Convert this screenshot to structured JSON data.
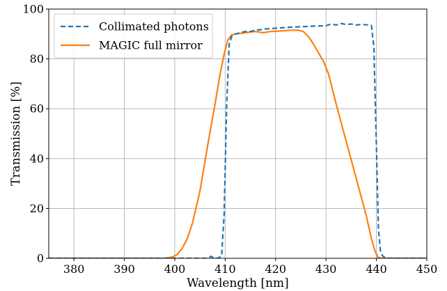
{
  "chart_data": {
    "type": "line",
    "xlabel": "Wavelength [nm]",
    "ylabel": "Transmission [%]",
    "xlim": [
      375,
      450
    ],
    "ylim": [
      0,
      100
    ],
    "xticks": [
      380,
      390,
      400,
      410,
      420,
      430,
      440,
      450
    ],
    "yticks": [
      0,
      20,
      40,
      60,
      80,
      100
    ],
    "grid": true,
    "legend_position": "top-left",
    "series": [
      {
        "name": "Collimated photons",
        "color": "#1f77b4",
        "style": "dashed",
        "x": [
          375,
          406.5,
          407.2,
          407.8,
          408.5,
          409.3,
          409.8,
          410.3,
          410.8,
          411.3,
          412,
          413,
          414,
          415,
          416,
          418,
          420,
          422,
          424,
          426,
          428,
          430,
          431,
          432,
          433,
          434,
          435,
          436,
          437,
          438,
          439,
          439.5,
          440,
          440.4,
          440.8,
          441.2,
          441.7,
          442.5,
          450
        ],
        "y": [
          0,
          0,
          0.8,
          0,
          0,
          1,
          18,
          62,
          86,
          89,
          90,
          90.5,
          91,
          91,
          91.5,
          92,
          92.3,
          92.6,
          92.8,
          93,
          93.2,
          93.3,
          94,
          93.6,
          94.2,
          93.8,
          94,
          93.6,
          93.8,
          93.7,
          93.4,
          85,
          45,
          12,
          3,
          1,
          0.3,
          0,
          0
        ]
      },
      {
        "name": "MAGIC full mirror",
        "color": "#ff7f0e",
        "style": "solid",
        "x": [
          375,
          398,
          399.5,
          400.5,
          401.5,
          402.5,
          403.5,
          405,
          406.5,
          408,
          409,
          409.8,
          410.5,
          411.2,
          412,
          414,
          416,
          417.5,
          419,
          421,
          423,
          424.5,
          425.5,
          426.5,
          427.5,
          428.5,
          429.5,
          430.5,
          432,
          434,
          436,
          438,
          439,
          439.7,
          440.3,
          441,
          450
        ],
        "y": [
          0,
          0,
          0.5,
          1.5,
          4,
          8,
          14,
          27,
          45,
          62,
          74,
          82,
          87.5,
          89.5,
          90,
          90.5,
          91,
          90.5,
          91,
          91.2,
          91.5,
          91.5,
          91,
          89,
          86,
          82.5,
          79,
          74,
          62,
          47,
          32,
          17,
          8,
          3,
          0.5,
          0,
          0
        ]
      }
    ]
  }
}
